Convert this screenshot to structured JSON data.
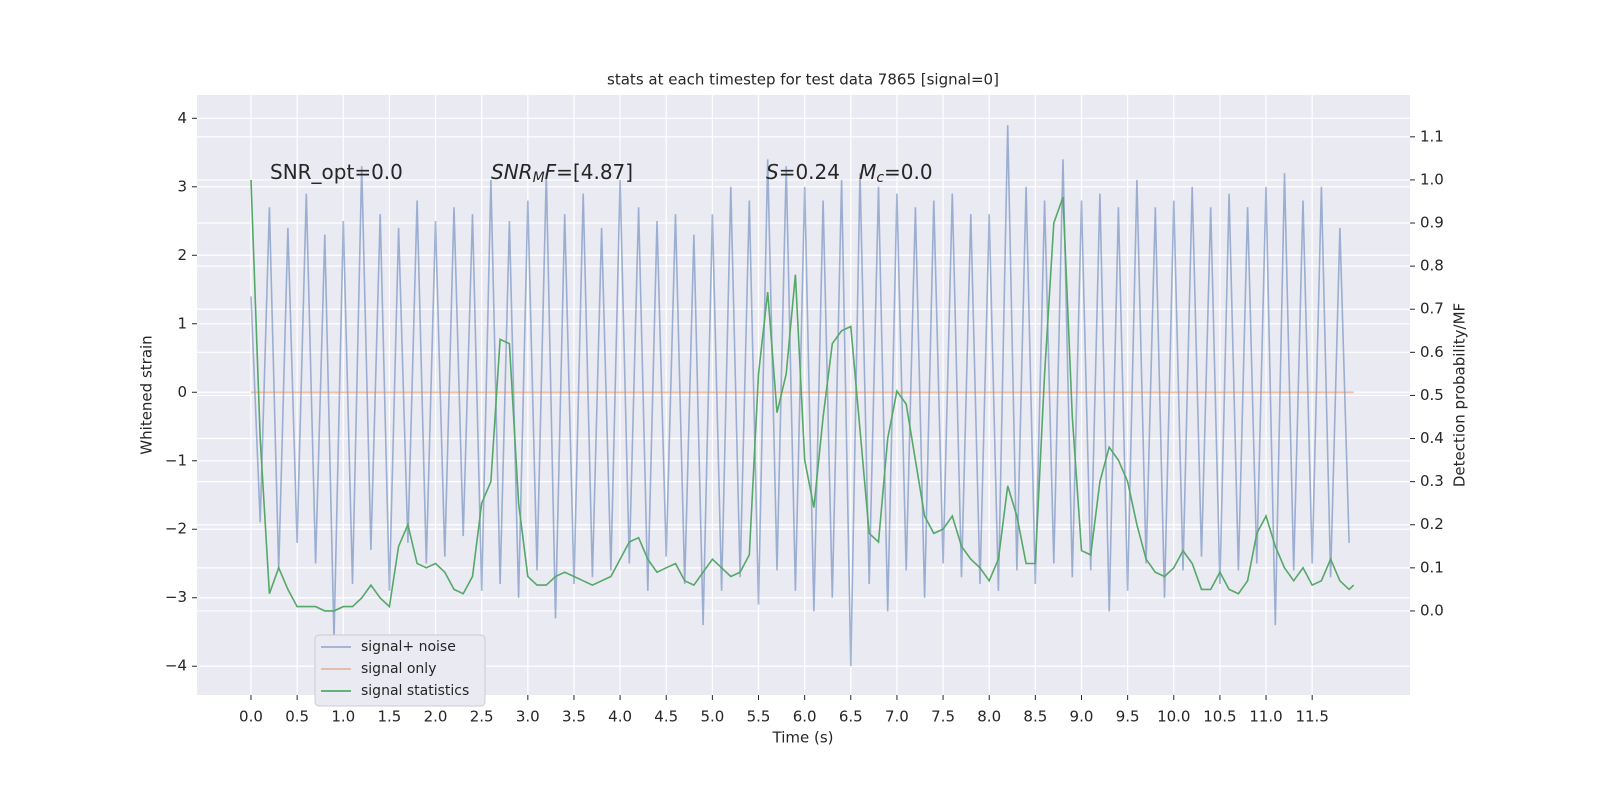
{
  "chart_data": {
    "type": "line",
    "title": "stats at each timestep for test data 7865 [signal=0]",
    "x_label": "Time (s)",
    "y_label": "Whitened strain",
    "y2_label": "Detection probability/MF",
    "xlim": [
      -0.585,
      12.56
    ],
    "ylim": [
      -4.42,
      4.34
    ],
    "y2lim": [
      -0.195,
      1.197
    ],
    "xticks": [
      {
        "value": 0,
        "label": "0.0"
      },
      0.5,
      {
        "value": 1,
        "label": "1.0"
      },
      1.5,
      {
        "value": 2,
        "label": "2.0"
      },
      2.5,
      {
        "value": 3,
        "label": "3.0"
      },
      3.5,
      {
        "value": 4,
        "label": "4.0"
      },
      4.5,
      {
        "value": 5,
        "label": "5.0"
      },
      5.5,
      {
        "value": 6,
        "label": "6.0"
      },
      6.5,
      {
        "value": 7,
        "label": "7.0"
      },
      7.5,
      {
        "value": 8,
        "label": "8.0"
      },
      8.5,
      {
        "value": 9,
        "label": "9.0"
      },
      9.5,
      {
        "value": 10,
        "label": "10.0"
      },
      10.5,
      {
        "value": 11,
        "label": "11.0"
      },
      11.5
    ],
    "yticks": [
      {
        "value": -4,
        "label": "−4"
      },
      {
        "value": -3,
        "label": "−3"
      },
      {
        "value": -2,
        "label": "−2"
      },
      {
        "value": -1,
        "label": "−1"
      },
      0,
      1,
      2,
      3,
      4
    ],
    "y2ticks": [
      {
        "value": 0,
        "label": "0.0"
      },
      0.1,
      0.2,
      0.3,
      0.4,
      0.5,
      0.6,
      0.7,
      0.8,
      0.9,
      {
        "value": 1,
        "label": "1.0"
      },
      1.1
    ],
    "grid": true,
    "legend": "lower left",
    "annotations": [
      [
        {
          "text": "SNR_opt=0.0",
          "style": "normal"
        }
      ],
      [
        {
          "text": "SNR",
          "style": "italic"
        },
        {
          "text": "M",
          "style": "sub"
        },
        {
          "text": "F",
          "style": "italic"
        },
        {
          "text": "=[4.87]",
          "style": "normal"
        }
      ],
      [
        {
          "text": "S",
          "style": "italic"
        },
        {
          "text": "=0.24   ",
          "style": "normal"
        },
        {
          "text": "M",
          "style": "italic"
        },
        {
          "text": "c",
          "style": "sub"
        },
        {
          "text": "=0.0",
          "style": "normal"
        }
      ]
    ],
    "series": [
      {
        "name": "signal+ noise",
        "color": "#4c72b0",
        "opacity": 0.5,
        "x": [
          0,
          0.1,
          0.2,
          0.3,
          0.4,
          0.5,
          0.6,
          0.7,
          0.8,
          0.9,
          1,
          1.1,
          1.2,
          1.3,
          1.4,
          1.5,
          1.6,
          1.7,
          1.8,
          1.9,
          2,
          2.1,
          2.2,
          2.3,
          2.4,
          2.5,
          2.6,
          2.7,
          2.8,
          2.9,
          3,
          3.1,
          3.2,
          3.3,
          3.4,
          3.5,
          3.6,
          3.7,
          3.8,
          3.9,
          4,
          4.1,
          4.2,
          4.3,
          4.4,
          4.5,
          4.6,
          4.7,
          4.8,
          4.9,
          5,
          5.1,
          5.2,
          5.3,
          5.4,
          5.5,
          5.6,
          5.7,
          5.8,
          5.9,
          6,
          6.1,
          6.2,
          6.3,
          6.4,
          6.5,
          6.6,
          6.7,
          6.8,
          6.9,
          7,
          7.1,
          7.2,
          7.3,
          7.4,
          7.5,
          7.6,
          7.7,
          7.8,
          7.9,
          8,
          8.1,
          8.2,
          8.3,
          8.4,
          8.5,
          8.6,
          8.7,
          8.8,
          8.9,
          9,
          9.1,
          9.2,
          9.3,
          9.4,
          9.5,
          9.6,
          9.7,
          9.8,
          9.9,
          10,
          10.1,
          10.2,
          10.3,
          10.4,
          10.5,
          10.6,
          10.7,
          10.8,
          10.9,
          11,
          11.1,
          11.2,
          11.3,
          11.4,
          11.5,
          11.6,
          11.7,
          11.8,
          11.9
        ],
        "values": [
          1.4,
          -1.9,
          2.7,
          -2.6,
          2.4,
          -2.2,
          2.9,
          -2.5,
          2.3,
          -3.6,
          2.5,
          -2.8,
          3.3,
          -2.3,
          2.6,
          -2.9,
          2.4,
          -2.2,
          2.8,
          -2.5,
          2.5,
          -2.4,
          2.7,
          -2.1,
          2.6,
          -2.9,
          3.1,
          -2.8,
          2.5,
          -3.0,
          2.8,
          -2.6,
          3.2,
          -3.3,
          2.6,
          -2.8,
          2.9,
          -2.7,
          2.4,
          -2.6,
          3.1,
          -2.5,
          2.7,
          -2.9,
          2.5,
          -2.4,
          2.6,
          -2.8,
          2.3,
          -3.4,
          2.6,
          -2.9,
          3.0,
          -2.7,
          2.8,
          -3.1,
          3.4,
          -2.6,
          3.3,
          -2.9,
          3.0,
          -3.2,
          2.8,
          -3.0,
          3.1,
          -4.0,
          3.2,
          -2.8,
          3.0,
          -3.2,
          2.9,
          -2.6,
          2.7,
          -3.0,
          2.8,
          -2.5,
          2.9,
          -2.7,
          2.6,
          -2.8,
          2.6,
          -2.9,
          3.9,
          -2.6,
          3.0,
          -2.8,
          2.8,
          -2.5,
          3.4,
          -2.7,
          2.8,
          -2.6,
          2.9,
          -3.2,
          2.7,
          -2.9,
          3.1,
          -2.5,
          2.7,
          -3.0,
          2.8,
          -2.6,
          3.0,
          -2.4,
          2.7,
          -2.8,
          2.9,
          -2.6,
          2.7,
          -2.5,
          3.0,
          -3.4,
          3.2,
          -2.6,
          2.8,
          -2.5,
          3.0,
          -2.7,
          2.4,
          -2.2
        ]
      },
      {
        "name": "signal only",
        "color": "#dd8452",
        "opacity": 0.5,
        "x": [
          0,
          11.95
        ],
        "values": [
          0,
          0
        ]
      },
      {
        "name": "signal statistics",
        "color": "#55a868",
        "opacity": 1,
        "axis": "y2",
        "x": [
          0,
          0.1,
          0.2,
          0.3,
          0.4,
          0.5,
          0.6,
          0.7,
          0.8,
          0.9,
          1,
          1.1,
          1.2,
          1.3,
          1.4,
          1.5,
          1.6,
          1.7,
          1.8,
          1.9,
          2,
          2.1,
          2.2,
          2.3,
          2.4,
          2.5,
          2.6,
          2.7,
          2.8,
          2.9,
          3,
          3.1,
          3.2,
          3.3,
          3.4,
          3.5,
          3.6,
          3.7,
          3.8,
          3.9,
          4,
          4.1,
          4.2,
          4.3,
          4.4,
          4.5,
          4.6,
          4.7,
          4.8,
          4.9,
          5,
          5.1,
          5.2,
          5.3,
          5.4,
          5.5,
          5.6,
          5.7,
          5.8,
          5.9,
          6,
          6.1,
          6.2,
          6.3,
          6.4,
          6.5,
          6.6,
          6.7,
          6.8,
          6.9,
          7,
          7.1,
          7.2,
          7.3,
          7.4,
          7.5,
          7.6,
          7.7,
          7.8,
          7.9,
          8,
          8.1,
          8.2,
          8.3,
          8.4,
          8.5,
          8.6,
          8.7,
          8.8,
          8.9,
          9,
          9.1,
          9.2,
          9.3,
          9.4,
          9.5,
          9.6,
          9.7,
          9.8,
          9.9,
          10,
          10.1,
          10.2,
          10.3,
          10.4,
          10.5,
          10.6,
          10.7,
          10.8,
          10.9,
          11,
          11.1,
          11.2,
          11.3,
          11.4,
          11.5,
          11.6,
          11.7,
          11.8,
          11.9,
          11.95
        ],
        "values": [
          1.0,
          0.4,
          0.04,
          0.1,
          0.05,
          0.01,
          0.01,
          0.01,
          0.0,
          0.0,
          0.01,
          0.01,
          0.03,
          0.06,
          0.03,
          0.01,
          0.15,
          0.2,
          0.11,
          0.1,
          0.11,
          0.09,
          0.05,
          0.04,
          0.08,
          0.25,
          0.3,
          0.63,
          0.62,
          0.25,
          0.08,
          0.06,
          0.06,
          0.08,
          0.09,
          0.08,
          0.07,
          0.06,
          0.07,
          0.08,
          0.12,
          0.16,
          0.17,
          0.12,
          0.09,
          0.1,
          0.11,
          0.07,
          0.06,
          0.09,
          0.12,
          0.1,
          0.08,
          0.09,
          0.13,
          0.55,
          0.74,
          0.46,
          0.55,
          0.78,
          0.35,
          0.24,
          0.45,
          0.62,
          0.65,
          0.66,
          0.42,
          0.18,
          0.16,
          0.4,
          0.51,
          0.48,
          0.35,
          0.22,
          0.18,
          0.19,
          0.22,
          0.15,
          0.12,
          0.1,
          0.07,
          0.12,
          0.29,
          0.22,
          0.11,
          0.11,
          0.55,
          0.9,
          0.96,
          0.45,
          0.14,
          0.13,
          0.3,
          0.38,
          0.35,
          0.3,
          0.2,
          0.12,
          0.09,
          0.08,
          0.1,
          0.14,
          0.11,
          0.05,
          0.05,
          0.09,
          0.05,
          0.04,
          0.07,
          0.18,
          0.22,
          0.15,
          0.1,
          0.07,
          0.1,
          0.06,
          0.07,
          0.12,
          0.07,
          0.05,
          0.06
        ]
      }
    ]
  }
}
